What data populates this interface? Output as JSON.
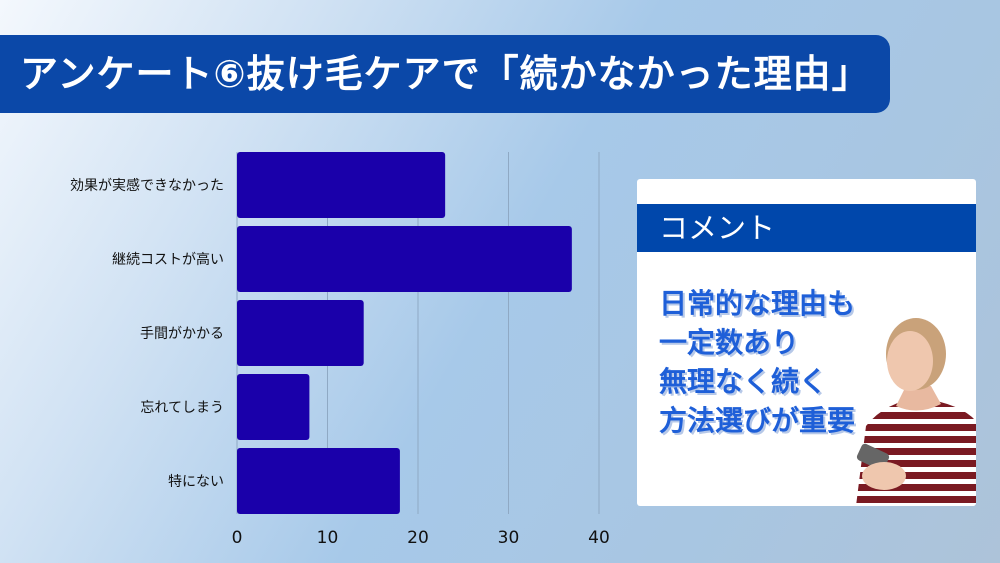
{
  "title": "アンケート⑥抜け毛ケアで「続かなかった理由」",
  "chart_data": {
    "type": "bar",
    "orientation": "horizontal",
    "categories": [
      "効果が実感できなかった",
      "継続コストが高い",
      "手間がかかる",
      "忘れてしまう",
      "特にない"
    ],
    "values": [
      23,
      37,
      14,
      8,
      18
    ],
    "xlim": [
      0,
      40
    ],
    "xticks": [
      "0",
      "10",
      "20",
      "30",
      "40"
    ],
    "grid": true,
    "bar_color": "#1a00aa"
  },
  "comment": {
    "header": "コメント",
    "lines": [
      "日常的な理由も",
      "一定数あり",
      "無理なく続く",
      "方法選びが重要"
    ]
  }
}
